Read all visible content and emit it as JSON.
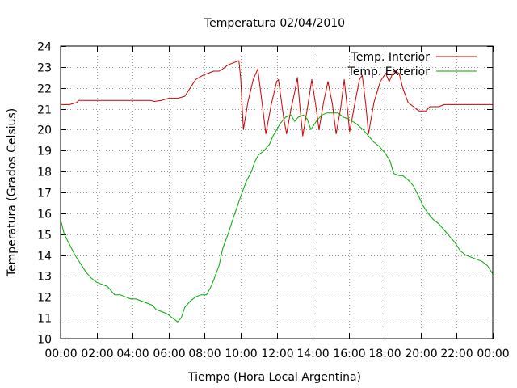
{
  "chart_data": {
    "type": "line",
    "title": "Temperatura 02/04/2010",
    "xlabel": "Tiempo (Hora Local Argentina)",
    "ylabel": "Temperatura (Grados Celsius)",
    "xlim": [
      0,
      24
    ],
    "ylim": [
      10,
      24
    ],
    "x_unit": "hours",
    "x_tick_labels": [
      "00:00",
      "02:00",
      "04:00",
      "06:00",
      "08:00",
      "10:00",
      "12:00",
      "14:00",
      "16:00",
      "18:00",
      "20:00",
      "22:00",
      "00:00"
    ],
    "y_ticks": [
      10,
      11,
      12,
      13,
      14,
      15,
      16,
      17,
      18,
      19,
      20,
      21,
      22,
      23,
      24
    ],
    "grid": true,
    "legend_position": "top-right",
    "series": [
      {
        "name": "Temp. Interior",
        "color": "#cc0000",
        "points": [
          [
            0,
            21.2
          ],
          [
            0.5,
            21.2
          ],
          [
            0.9,
            21.3
          ],
          [
            1.0,
            21.4
          ],
          [
            3.0,
            21.4
          ],
          [
            5.0,
            21.4
          ],
          [
            5.2,
            21.35
          ],
          [
            5.6,
            21.4
          ],
          [
            6.0,
            21.5
          ],
          [
            6.5,
            21.5
          ],
          [
            6.9,
            21.6
          ],
          [
            7.2,
            22.0
          ],
          [
            7.5,
            22.4
          ],
          [
            7.9,
            22.6
          ],
          [
            8.2,
            22.7
          ],
          [
            8.5,
            22.8
          ],
          [
            8.8,
            22.8
          ],
          [
            9.0,
            22.9
          ],
          [
            9.3,
            23.1
          ],
          [
            9.6,
            23.2
          ],
          [
            9.9,
            23.3
          ],
          [
            10.0,
            22.5
          ],
          [
            10.15,
            20.0
          ],
          [
            10.4,
            21.3
          ],
          [
            10.7,
            22.4
          ],
          [
            10.95,
            22.9
          ],
          [
            11.2,
            21.2
          ],
          [
            11.4,
            19.8
          ],
          [
            11.7,
            21.2
          ],
          [
            12.0,
            22.3
          ],
          [
            12.1,
            22.4
          ],
          [
            12.4,
            20.5
          ],
          [
            12.55,
            19.8
          ],
          [
            12.8,
            21.0
          ],
          [
            13.0,
            21.8
          ],
          [
            13.15,
            22.5
          ],
          [
            13.3,
            21.0
          ],
          [
            13.45,
            19.7
          ],
          [
            13.7,
            21.0
          ],
          [
            13.95,
            22.4
          ],
          [
            14.2,
            21.0
          ],
          [
            14.35,
            20.0
          ],
          [
            14.6,
            21.3
          ],
          [
            14.85,
            22.3
          ],
          [
            15.1,
            21.2
          ],
          [
            15.3,
            19.8
          ],
          [
            15.55,
            21.0
          ],
          [
            15.75,
            22.4
          ],
          [
            15.95,
            20.8
          ],
          [
            16.05,
            19.9
          ],
          [
            16.35,
            21.3
          ],
          [
            16.6,
            22.4
          ],
          [
            16.75,
            22.6
          ],
          [
            16.95,
            21.2
          ],
          [
            17.1,
            19.8
          ],
          [
            17.4,
            21.3
          ],
          [
            17.75,
            22.3
          ],
          [
            18.05,
            22.7
          ],
          [
            18.25,
            22.3
          ],
          [
            18.5,
            22.8
          ],
          [
            18.8,
            22.7
          ],
          [
            19.0,
            22.0
          ],
          [
            19.3,
            21.3
          ],
          [
            19.6,
            21.1
          ],
          [
            19.9,
            20.9
          ],
          [
            20.3,
            20.9
          ],
          [
            20.5,
            21.1
          ],
          [
            21.0,
            21.1
          ],
          [
            21.3,
            21.2
          ],
          [
            22.0,
            21.2
          ],
          [
            24.0,
            21.2
          ]
        ]
      },
      {
        "name": "Temp. Exterior",
        "color": "#00aa00",
        "points": [
          [
            0,
            15.7
          ],
          [
            0.2,
            15.0
          ],
          [
            0.5,
            14.5
          ],
          [
            0.8,
            14.0
          ],
          [
            1.1,
            13.6
          ],
          [
            1.4,
            13.2
          ],
          [
            1.7,
            12.9
          ],
          [
            2.0,
            12.7
          ],
          [
            2.3,
            12.6
          ],
          [
            2.6,
            12.5
          ],
          [
            2.8,
            12.3
          ],
          [
            3.0,
            12.1
          ],
          [
            3.3,
            12.1
          ],
          [
            3.6,
            12.0
          ],
          [
            3.9,
            11.9
          ],
          [
            4.2,
            11.9
          ],
          [
            4.5,
            11.8
          ],
          [
            4.8,
            11.7
          ],
          [
            5.1,
            11.6
          ],
          [
            5.3,
            11.4
          ],
          [
            5.6,
            11.3
          ],
          [
            5.9,
            11.2
          ],
          [
            6.2,
            11.0
          ],
          [
            6.5,
            10.8
          ],
          [
            6.7,
            11.0
          ],
          [
            6.9,
            11.5
          ],
          [
            7.2,
            11.8
          ],
          [
            7.5,
            12.0
          ],
          [
            7.8,
            12.1
          ],
          [
            8.1,
            12.1
          ],
          [
            8.3,
            12.4
          ],
          [
            8.5,
            12.8
          ],
          [
            8.8,
            13.5
          ],
          [
            9.0,
            14.3
          ],
          [
            9.3,
            15.0
          ],
          [
            9.6,
            15.8
          ],
          [
            9.8,
            16.3
          ],
          [
            10.0,
            16.8
          ],
          [
            10.3,
            17.5
          ],
          [
            10.6,
            18.0
          ],
          [
            10.8,
            18.5
          ],
          [
            11.0,
            18.8
          ],
          [
            11.3,
            19.0
          ],
          [
            11.6,
            19.3
          ],
          [
            11.8,
            19.7
          ],
          [
            12.0,
            20.0
          ],
          [
            12.2,
            20.3
          ],
          [
            12.5,
            20.6
          ],
          [
            12.8,
            20.7
          ],
          [
            13.0,
            20.4
          ],
          [
            13.2,
            20.6
          ],
          [
            13.5,
            20.7
          ],
          [
            13.7,
            20.5
          ],
          [
            13.9,
            20.0
          ],
          [
            14.2,
            20.4
          ],
          [
            14.5,
            20.7
          ],
          [
            14.8,
            20.8
          ],
          [
            15.1,
            20.8
          ],
          [
            15.4,
            20.8
          ],
          [
            15.7,
            20.6
          ],
          [
            16.0,
            20.5
          ],
          [
            16.4,
            20.3
          ],
          [
            16.8,
            20.0
          ],
          [
            17.1,
            19.7
          ],
          [
            17.4,
            19.4
          ],
          [
            17.7,
            19.2
          ],
          [
            18.0,
            18.9
          ],
          [
            18.3,
            18.5
          ],
          [
            18.5,
            17.9
          ],
          [
            18.8,
            17.8
          ],
          [
            19.0,
            17.8
          ],
          [
            19.3,
            17.6
          ],
          [
            19.6,
            17.3
          ],
          [
            19.9,
            16.8
          ],
          [
            20.1,
            16.4
          ],
          [
            20.4,
            16.0
          ],
          [
            20.7,
            15.7
          ],
          [
            21.0,
            15.5
          ],
          [
            21.3,
            15.2
          ],
          [
            21.6,
            14.9
          ],
          [
            21.9,
            14.6
          ],
          [
            22.2,
            14.2
          ],
          [
            22.5,
            14.0
          ],
          [
            22.8,
            13.9
          ],
          [
            23.1,
            13.8
          ],
          [
            23.4,
            13.7
          ],
          [
            23.7,
            13.5
          ],
          [
            24.0,
            13.1
          ]
        ]
      }
    ]
  }
}
